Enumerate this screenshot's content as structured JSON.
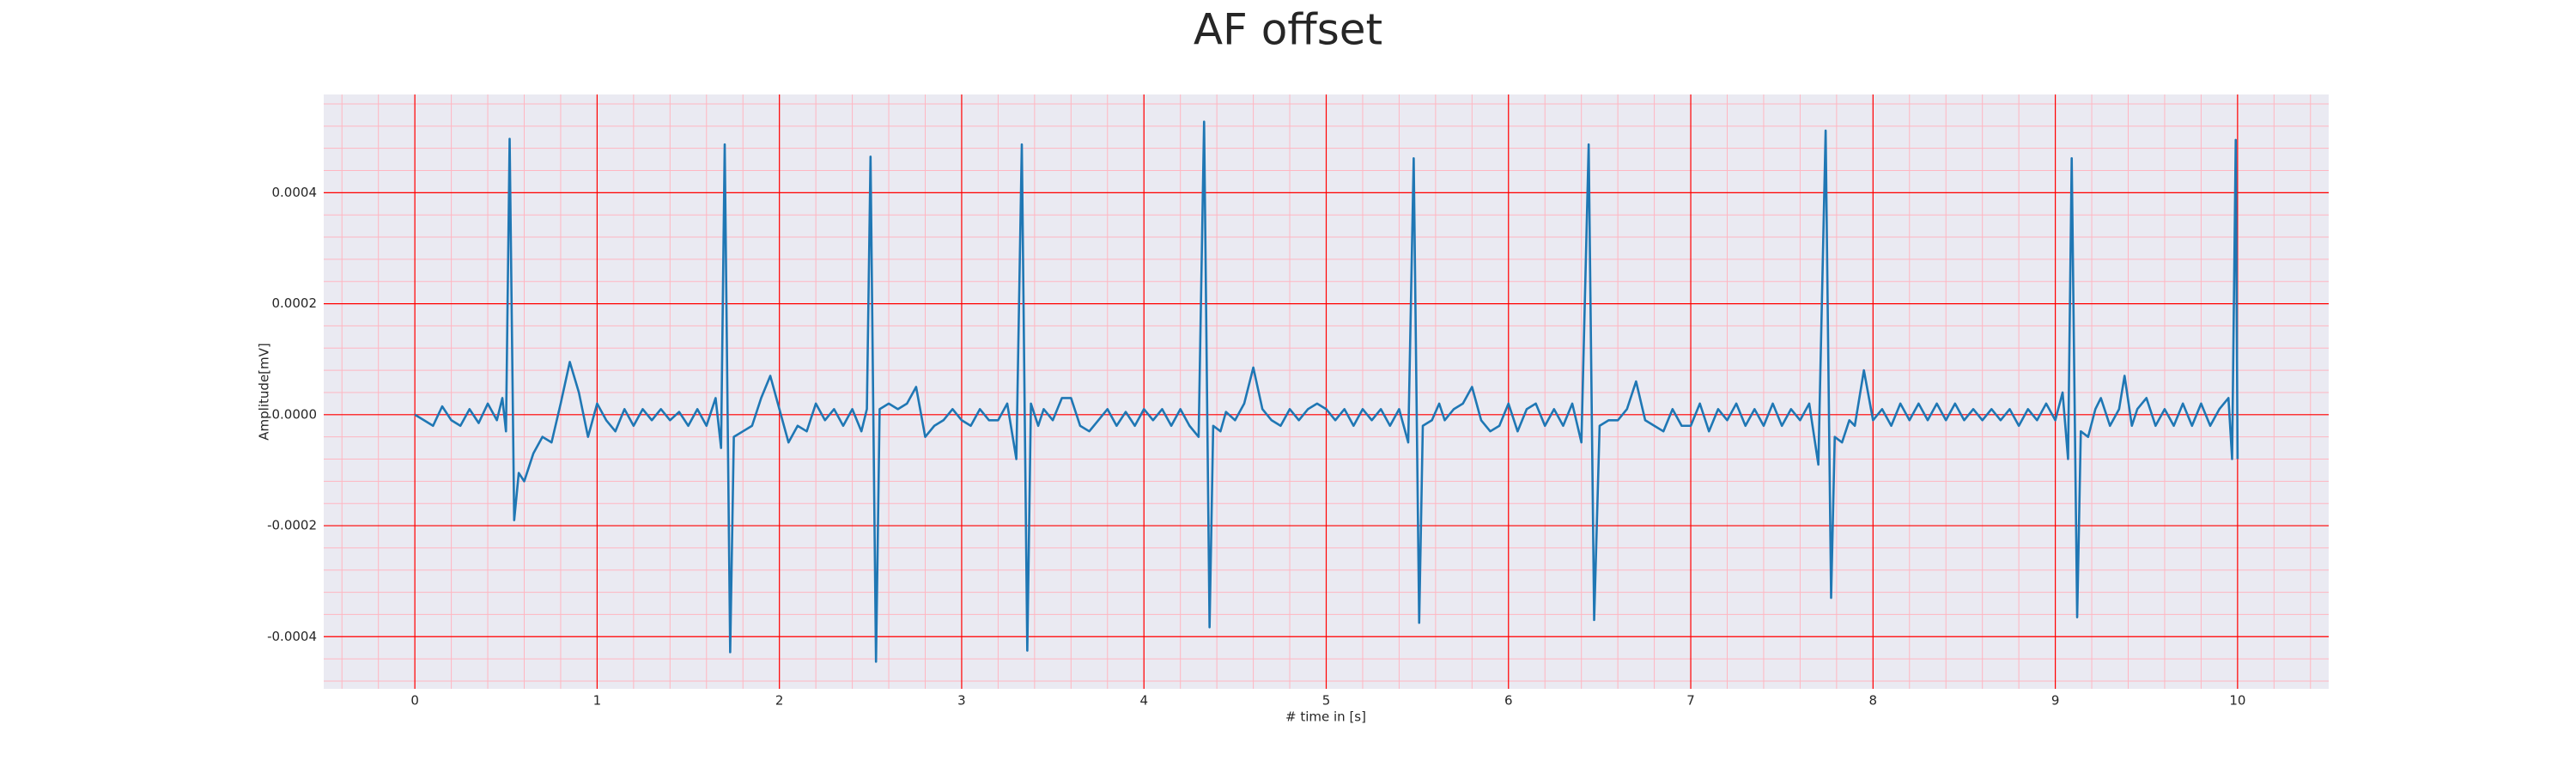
{
  "chart_data": {
    "type": "line",
    "title": "AF offset",
    "xlabel": "# time in [s]",
    "ylabel": "Amplitude[mV]",
    "x": [
      0,
      0.05,
      0.1,
      0.15,
      0.2,
      0.25,
      0.3,
      0.35,
      0.4,
      0.45,
      0.48,
      0.5,
      0.52,
      0.545,
      0.57,
      0.6,
      0.65,
      0.7,
      0.75,
      0.8,
      0.85,
      0.9,
      0.95,
      1.0,
      1.05,
      1.1,
      1.15,
      1.2,
      1.25,
      1.3,
      1.35,
      1.4,
      1.45,
      1.5,
      1.55,
      1.6,
      1.65,
      1.68,
      1.7,
      1.73,
      1.75,
      1.8,
      1.85,
      1.9,
      1.95,
      2.0,
      2.05,
      2.1,
      2.15,
      2.2,
      2.25,
      2.3,
      2.35,
      2.4,
      2.45,
      2.48,
      2.5,
      2.53,
      2.55,
      2.6,
      2.65,
      2.7,
      2.75,
      2.8,
      2.85,
      2.9,
      2.95,
      3.0,
      3.05,
      3.1,
      3.15,
      3.2,
      3.25,
      3.3,
      3.33,
      3.36,
      3.38,
      3.42,
      3.45,
      3.5,
      3.55,
      3.6,
      3.65,
      3.7,
      3.75,
      3.8,
      3.85,
      3.9,
      3.95,
      4.0,
      4.05,
      4.1,
      4.15,
      4.2,
      4.25,
      4.3,
      4.33,
      4.36,
      4.38,
      4.42,
      4.45,
      4.5,
      4.55,
      4.6,
      4.65,
      4.7,
      4.75,
      4.8,
      4.85,
      4.9,
      4.95,
      5.0,
      5.05,
      5.1,
      5.15,
      5.2,
      5.25,
      5.3,
      5.35,
      5.4,
      5.45,
      5.48,
      5.51,
      5.53,
      5.58,
      5.62,
      5.65,
      5.7,
      5.75,
      5.8,
      5.85,
      5.9,
      5.95,
      6.0,
      6.05,
      6.1,
      6.15,
      6.2,
      6.25,
      6.3,
      6.35,
      6.4,
      6.44,
      6.47,
      6.5,
      6.55,
      6.6,
      6.65,
      6.7,
      6.75,
      6.8,
      6.85,
      6.9,
      6.95,
      7.0,
      7.05,
      7.1,
      7.15,
      7.2,
      7.25,
      7.3,
      7.35,
      7.4,
      7.45,
      7.5,
      7.55,
      7.6,
      7.65,
      7.7,
      7.74,
      7.77,
      7.79,
      7.83,
      7.87,
      7.9,
      7.95,
      8.0,
      8.05,
      8.1,
      8.15,
      8.2,
      8.25,
      8.3,
      8.35,
      8.4,
      8.45,
      8.5,
      8.55,
      8.6,
      8.65,
      8.7,
      8.75,
      8.8,
      8.85,
      8.9,
      8.95,
      9.0,
      9.04,
      9.07,
      9.09,
      9.12,
      9.14,
      9.18,
      9.22,
      9.25,
      9.3,
      9.35,
      9.38,
      9.42,
      9.45,
      9.5,
      9.55,
      9.6,
      9.65,
      9.7,
      9.75,
      9.8,
      9.85,
      9.9,
      9.95,
      9.97,
      9.99,
      10.0
    ],
    "series": [
      {
        "color": "#1f77b4",
        "values": [
          0,
          -1e-05,
          -2e-05,
          1.5e-05,
          -1e-05,
          -2e-05,
          1e-05,
          -1.5e-05,
          2e-05,
          -1e-05,
          3e-05,
          -3e-05,
          0.000497,
          -0.00019,
          -0.000105,
          -0.00012,
          -7e-05,
          -4e-05,
          -5e-05,
          2e-05,
          9.5e-05,
          4e-05,
          -4e-05,
          2e-05,
          -1e-05,
          -3e-05,
          1e-05,
          -2e-05,
          1e-05,
          -1e-05,
          1e-05,
          -1e-05,
          5e-06,
          -2e-05,
          1e-05,
          -2e-05,
          3e-05,
          -6e-05,
          0.000487,
          -0.000428,
          -4e-05,
          -3e-05,
          -2e-05,
          3e-05,
          7e-05,
          1e-05,
          -5e-05,
          -2e-05,
          -3e-05,
          2e-05,
          -1e-05,
          1e-05,
          -2e-05,
          1e-05,
          -3e-05,
          1e-05,
          0.000465,
          -0.000445,
          1e-05,
          2e-05,
          1e-05,
          2e-05,
          5e-05,
          -4e-05,
          -2e-05,
          -1e-05,
          1e-05,
          -1e-05,
          -2e-05,
          1e-05,
          -1e-05,
          -1e-05,
          2e-05,
          -8e-05,
          0.000487,
          -0.000425,
          2e-05,
          -2e-05,
          1e-05,
          -1e-05,
          3e-05,
          3e-05,
          -2e-05,
          -3e-05,
          -1e-05,
          1e-05,
          -2e-05,
          5e-06,
          -2e-05,
          1e-05,
          -1e-05,
          1e-05,
          -2e-05,
          1e-05,
          -2e-05,
          -4e-05,
          0.000528,
          -0.000383,
          -2e-05,
          -3e-05,
          5e-06,
          -1e-05,
          2e-05,
          8.5e-05,
          1e-05,
          -1e-05,
          -2e-05,
          1e-05,
          -1e-05,
          1e-05,
          2e-05,
          1e-05,
          -1e-05,
          1e-05,
          -2e-05,
          1e-05,
          -1e-05,
          1e-05,
          -2e-05,
          1e-05,
          -5e-05,
          0.000462,
          -0.000375,
          -2e-05,
          -1e-05,
          2e-05,
          -1e-05,
          1e-05,
          2e-05,
          5e-05,
          -1e-05,
          -3e-05,
          -2e-05,
          2e-05,
          -3e-05,
          1e-05,
          2e-05,
          -2e-05,
          1e-05,
          -2e-05,
          2e-05,
          -5e-05,
          0.000487,
          -0.00037,
          -2e-05,
          -1e-05,
          -1e-05,
          1e-05,
          6e-05,
          -1e-05,
          -2e-05,
          -3e-05,
          1e-05,
          -2e-05,
          -2e-05,
          2e-05,
          -3e-05,
          1e-05,
          -1e-05,
          2e-05,
          -2e-05,
          1e-05,
          -2e-05,
          2e-05,
          -2e-05,
          1e-05,
          -1e-05,
          2e-05,
          -9e-05,
          0.000512,
          -0.00033,
          -4e-05,
          -5e-05,
          -1e-05,
          -2e-05,
          8e-05,
          -1e-05,
          1e-05,
          -2e-05,
          2e-05,
          -1e-05,
          2e-05,
          -1e-05,
          2e-05,
          -1e-05,
          2e-05,
          -1e-05,
          1e-05,
          -1e-05,
          1e-05,
          -1e-05,
          1e-05,
          -2e-05,
          1e-05,
          -1e-05,
          2e-05,
          -1e-05,
          4e-05,
          -8e-05,
          0.000462,
          -0.000365,
          -3e-05,
          -4e-05,
          1e-05,
          3e-05,
          -2e-05,
          1e-05,
          7e-05,
          -2e-05,
          1e-05,
          3e-05,
          -2e-05,
          1e-05,
          -2e-05,
          2e-05,
          -2e-05,
          2e-05,
          -2e-05,
          1e-05,
          3e-05,
          -8e-05,
          0.000495,
          -8e-05
        ]
      }
    ],
    "xlim": [
      -0.5,
      10.5
    ],
    "xticks": [
      0,
      1,
      2,
      3,
      4,
      5,
      6,
      7,
      8,
      9,
      10
    ],
    "ylim": [
      -0.000494,
      0.000577
    ],
    "yticks": [
      {
        "value": -0.0004,
        "label": "-0.0004"
      },
      {
        "value": -0.0002,
        "label": "-0.0002"
      },
      {
        "value": 0,
        "label": "0.0000"
      },
      {
        "value": 0.0002,
        "label": "0.0002"
      },
      {
        "value": 0.0004,
        "label": "0.0004"
      }
    ],
    "grid": true,
    "minor_grid": true,
    "grid_color": "#ff0000",
    "minor_grid_color": "#ffb6c1",
    "background": "#eaeaf2"
  }
}
